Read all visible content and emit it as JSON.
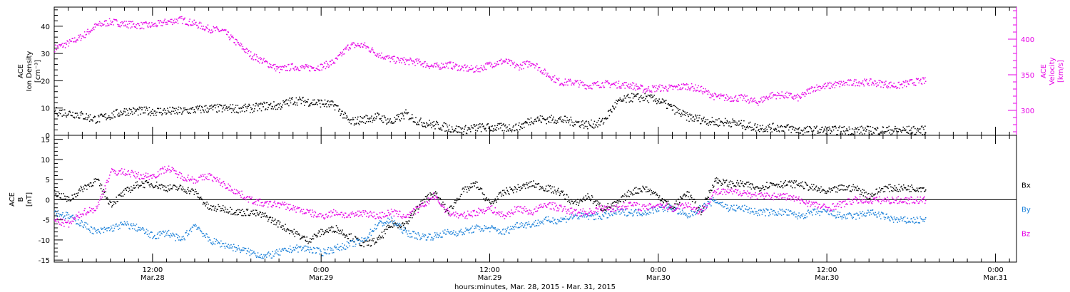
{
  "colors": {
    "black": "#000000",
    "magenta": "#e600e6",
    "blue": "#1a80d9"
  },
  "chart_data": [
    {
      "type": "scatter",
      "panel": "ace-density-velocity",
      "left_ylabel_lines": [
        "ACE",
        "Ion Density"
      ],
      "left_unit": "[cm⁻³]",
      "right_ylabel_lines": [
        "ACE",
        "Velocity"
      ],
      "right_unit": "[km/s]",
      "ylim_left": [
        0,
        47
      ],
      "ylim_right": [
        265,
        445
      ],
      "left_ticks": [
        0,
        10,
        20,
        30,
        40
      ],
      "right_ticks": [
        300,
        350,
        400
      ],
      "series": [
        {
          "axis": "left",
          "color": "#000000",
          "x": [
            0,
            3,
            6,
            10,
            14,
            18,
            22,
            26,
            28,
            30,
            32,
            34,
            38,
            40,
            42,
            44,
            46,
            48,
            50,
            52,
            54,
            56,
            58,
            60,
            64,
            66,
            68,
            70,
            72,
            74,
            76,
            78,
            80,
            82,
            84,
            86,
            88,
            90,
            92,
            94,
            96,
            98,
            100,
            102,
            104,
            106,
            108,
            110,
            114,
            118,
            120,
            124
          ],
          "y": [
            9,
            8,
            6,
            9,
            9,
            9,
            10,
            10,
            10,
            11,
            11,
            13,
            12,
            11,
            5,
            6,
            7,
            5,
            8,
            5,
            4,
            3,
            2,
            3,
            3,
            3,
            6,
            6,
            6,
            5,
            4,
            5,
            12,
            14,
            14,
            13,
            10,
            7,
            6,
            5,
            5,
            4,
            3,
            3,
            3,
            2,
            2,
            2,
            2,
            2,
            2,
            2
          ]
        },
        {
          "axis": "right",
          "color": "#e600e6",
          "x": [
            0,
            2,
            4,
            6,
            8,
            10,
            12,
            14,
            16,
            18,
            20,
            22,
            24,
            26,
            28,
            30,
            32,
            34,
            36,
            38,
            40,
            42,
            44,
            46,
            48,
            50,
            52,
            54,
            56,
            58,
            60,
            62,
            64,
            66,
            68,
            70,
            72,
            74,
            76,
            78,
            80,
            82,
            84,
            86,
            88,
            90,
            92,
            94,
            96,
            98,
            100,
            102,
            104,
            106,
            108,
            110,
            112,
            114,
            116,
            118,
            120,
            122,
            124
          ],
          "y": [
            388,
            395,
            405,
            420,
            425,
            422,
            420,
            420,
            425,
            428,
            422,
            415,
            412,
            395,
            378,
            368,
            358,
            362,
            360,
            362,
            370,
            392,
            392,
            380,
            372,
            370,
            368,
            362,
            365,
            360,
            358,
            365,
            370,
            362,
            368,
            352,
            340,
            340,
            335,
            338,
            337,
            336,
            330,
            332,
            332,
            335,
            330,
            320,
            318,
            318,
            312,
            322,
            322,
            318,
            332,
            335,
            338,
            340,
            340,
            338,
            335,
            340,
            342
          ]
        }
      ]
    },
    {
      "type": "scatter",
      "panel": "ace-magnetic-field",
      "ylabel_lines": [
        "ACE",
        "B"
      ],
      "unit": "[nT]",
      "ylim": [
        -15.5,
        16
      ],
      "ticks": [
        -15,
        -10,
        -5,
        0,
        5,
        10,
        15
      ],
      "legend": [
        "Bx",
        "By",
        "Bz"
      ],
      "legend_colors": [
        "#000000",
        "#1a80d9",
        "#e600e6"
      ],
      "series": [
        {
          "name": "Bx",
          "color": "#000000",
          "x": [
            0,
            2,
            4,
            6,
            8,
            10,
            12,
            14,
            16,
            18,
            20,
            22,
            24,
            26,
            28,
            30,
            32,
            34,
            36,
            38,
            40,
            42,
            44,
            46,
            48,
            50,
            52,
            54,
            56,
            58,
            60,
            62,
            64,
            66,
            68,
            70,
            72,
            74,
            76,
            78,
            80,
            82,
            84,
            86,
            88,
            90,
            92,
            94,
            96,
            98,
            100,
            102,
            104,
            106,
            108,
            110,
            112,
            114,
            116,
            118,
            120,
            122,
            124
          ],
          "y": [
            2,
            0,
            3,
            5,
            -1,
            2,
            4,
            4,
            3,
            3,
            2,
            -2,
            -2,
            -3,
            -3,
            -4,
            -6,
            -8,
            -10,
            -8,
            -7,
            -9,
            -11,
            -10,
            -6,
            -6,
            -1,
            2,
            -3,
            2,
            4,
            -1,
            2,
            3,
            4,
            3,
            2,
            -1,
            1,
            -2,
            -1,
            2,
            3,
            1,
            -2,
            2,
            -3,
            5,
            4,
            4,
            3,
            4,
            4,
            4,
            3,
            2,
            3,
            3,
            1,
            3,
            3,
            3,
            3
          ]
        },
        {
          "name": "By",
          "color": "#1a80d9",
          "x": [
            0,
            2,
            4,
            6,
            8,
            10,
            12,
            14,
            16,
            18,
            20,
            22,
            24,
            26,
            28,
            30,
            32,
            34,
            36,
            38,
            40,
            42,
            44,
            46,
            48,
            50,
            52,
            54,
            56,
            58,
            60,
            62,
            64,
            66,
            68,
            70,
            72,
            74,
            76,
            78,
            80,
            82,
            84,
            86,
            88,
            90,
            92,
            94,
            96,
            98,
            100,
            102,
            104,
            106,
            108,
            110,
            112,
            114,
            116,
            118,
            120,
            122,
            124
          ],
          "y": [
            -3,
            -4,
            -6,
            -8,
            -7,
            -6,
            -7,
            -9,
            -8,
            -10,
            -6,
            -10,
            -11,
            -12,
            -13,
            -14,
            -13,
            -12,
            -12,
            -13,
            -12,
            -11,
            -10,
            -6,
            -5,
            -8,
            -9,
            -9,
            -8,
            -8,
            -7,
            -7,
            -8,
            -6,
            -6,
            -5,
            -5,
            -4,
            -4,
            -4,
            -3,
            -3,
            -3,
            -2,
            -2,
            -4,
            -2,
            0,
            -2,
            -2,
            -3,
            -3,
            -3,
            -4,
            -3,
            -3,
            -4,
            -4,
            -3,
            -4,
            -5,
            -5,
            -5
          ]
        },
        {
          "name": "Bz",
          "color": "#e600e6",
          "x": [
            0,
            2,
            4,
            6,
            8,
            10,
            12,
            14,
            16,
            18,
            20,
            22,
            24,
            26,
            28,
            30,
            32,
            34,
            36,
            38,
            40,
            42,
            44,
            46,
            48,
            50,
            52,
            54,
            56,
            58,
            60,
            62,
            64,
            66,
            68,
            70,
            72,
            74,
            76,
            78,
            80,
            82,
            84,
            86,
            88,
            90,
            92,
            94,
            96,
            98,
            100,
            102,
            104,
            106,
            108,
            110,
            112,
            114,
            116,
            118,
            120,
            122,
            124
          ],
          "y": [
            -5,
            -6,
            -3,
            -2,
            7,
            7,
            6,
            6,
            8,
            6,
            5,
            6,
            4,
            2,
            0,
            -1,
            -1,
            -2,
            -3,
            -4,
            -3,
            -4,
            -3,
            -4,
            -3,
            -4,
            -2,
            1,
            -3,
            -4,
            -3,
            -2,
            -4,
            -2,
            -3,
            -1,
            -2,
            -3,
            -3,
            -2,
            -2,
            -1,
            -2,
            -1,
            -2,
            -1,
            -3,
            2,
            2,
            2,
            1,
            1,
            1,
            0,
            -1,
            -2,
            -1,
            0,
            0,
            0,
            0,
            0,
            0
          ]
        }
      ]
    },
    {
      "type": "time-axis",
      "xlim": [
        0,
        137
      ],
      "major_x": [
        14,
        38,
        62,
        86,
        110,
        134
      ],
      "major_x_labels": [
        [
          "12:00",
          "Mar.28"
        ],
        [
          "0:00",
          "Mar.29"
        ],
        [
          "12:00",
          "Mar.29"
        ],
        [
          "0:00",
          "Mar.30"
        ],
        [
          "12:00",
          "Mar.30"
        ],
        [
          "0:00",
          "Mar.31"
        ]
      ],
      "minor_step": 2,
      "xlabel": "hours:minutes, Mar. 28, 2015 - Mar. 31, 2015"
    }
  ]
}
